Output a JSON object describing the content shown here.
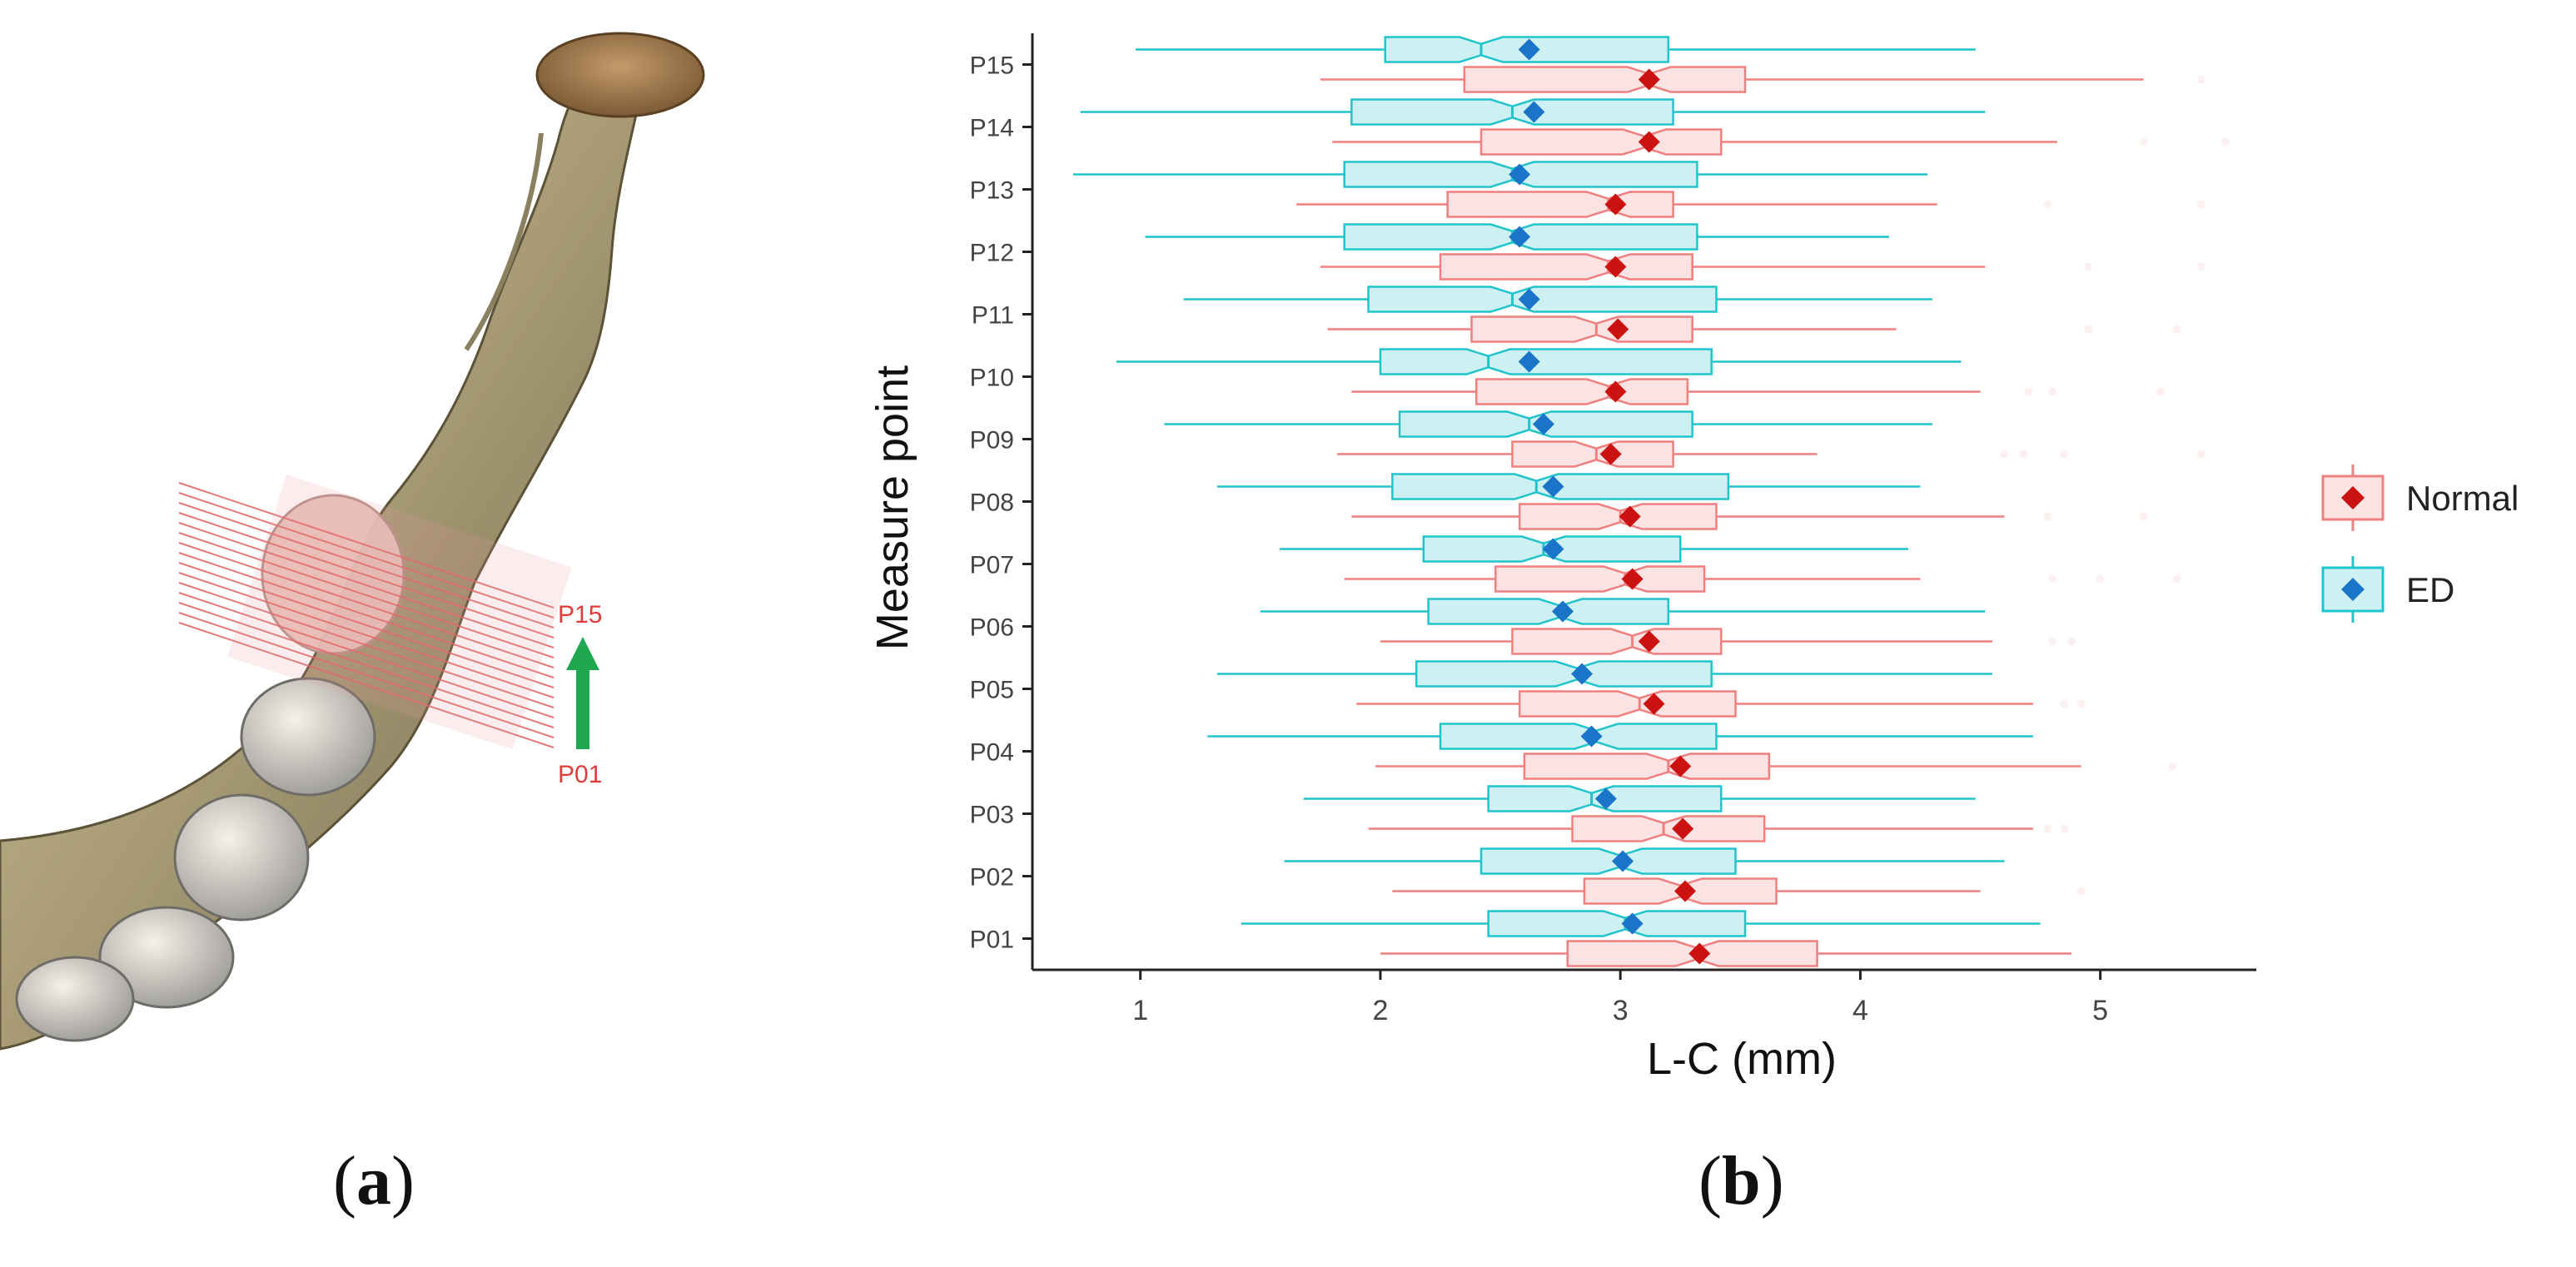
{
  "panel_a": {
    "label_top": "P15",
    "label_bottom": "P01",
    "colors": {
      "lines": "#e06060",
      "arrow": "#1fa84f",
      "bone": "#b7ab88"
    }
  },
  "captions": {
    "a_open": "(",
    "a_letter": "a",
    "a_close": ")",
    "b_open": "(",
    "b_letter": "b",
    "b_close": ")"
  },
  "chart_data": {
    "type": "boxplot",
    "orientation": "horizontal",
    "xlabel": "L-C (mm)",
    "ylabel": "Measure point",
    "xlim": [
      0.55,
      5.65
    ],
    "xticks": [
      1,
      2,
      3,
      4,
      5
    ],
    "categories": [
      "P01",
      "P02",
      "P03",
      "P04",
      "P05",
      "P06",
      "P07",
      "P08",
      "P09",
      "P10",
      "P11",
      "P12",
      "P13",
      "P14",
      "P15"
    ],
    "legend_position": "right",
    "series": [
      {
        "name": "Normal",
        "color": "#f08080",
        "fill": "#fbe3e3",
        "mean_color": "#cc1111",
        "stats": [
          {
            "min": 2.0,
            "q1": 2.78,
            "median": 3.32,
            "q3": 3.82,
            "max": 4.88,
            "mean": 3.33,
            "outliers": []
          },
          {
            "min": 2.05,
            "q1": 2.85,
            "median": 3.25,
            "q3": 3.65,
            "max": 4.5,
            "mean": 3.27,
            "outliers": [
              4.92
            ]
          },
          {
            "min": 1.95,
            "q1": 2.8,
            "median": 3.18,
            "q3": 3.6,
            "max": 4.72,
            "mean": 3.26,
            "outliers": [
              4.78,
              4.85
            ]
          },
          {
            "min": 1.98,
            "q1": 2.6,
            "median": 3.2,
            "q3": 3.62,
            "max": 4.92,
            "mean": 3.25,
            "outliers": [
              5.3
            ]
          },
          {
            "min": 1.9,
            "q1": 2.58,
            "median": 3.08,
            "q3": 3.48,
            "max": 4.72,
            "mean": 3.14,
            "outliers": [
              4.85,
              4.92
            ]
          },
          {
            "min": 2.0,
            "q1": 2.55,
            "median": 3.05,
            "q3": 3.42,
            "max": 4.55,
            "mean": 3.12,
            "outliers": [
              4.8,
              4.88
            ]
          },
          {
            "min": 1.85,
            "q1": 2.48,
            "median": 3.02,
            "q3": 3.35,
            "max": 4.25,
            "mean": 3.05,
            "outliers": [
              4.8,
              5.0,
              5.32
            ]
          },
          {
            "min": 1.88,
            "q1": 2.58,
            "median": 3.0,
            "q3": 3.4,
            "max": 4.6,
            "mean": 3.04,
            "outliers": [
              4.78,
              5.18
            ]
          },
          {
            "min": 1.82,
            "q1": 2.55,
            "median": 2.9,
            "q3": 3.22,
            "max": 3.82,
            "mean": 2.96,
            "outliers": [
              4.6,
              4.68,
              4.85,
              5.42
            ]
          },
          {
            "min": 1.88,
            "q1": 2.4,
            "median": 2.95,
            "q3": 3.28,
            "max": 4.5,
            "mean": 2.98,
            "outliers": [
              4.7,
              4.8,
              5.25
            ]
          },
          {
            "min": 1.78,
            "q1": 2.38,
            "median": 2.9,
            "q3": 3.3,
            "max": 4.15,
            "mean": 2.99,
            "outliers": [
              4.95,
              5.32
            ]
          },
          {
            "min": 1.75,
            "q1": 2.25,
            "median": 2.95,
            "q3": 3.3,
            "max": 4.52,
            "mean": 2.98,
            "outliers": [
              4.95,
              5.42
            ]
          },
          {
            "min": 1.65,
            "q1": 2.28,
            "median": 2.95,
            "q3": 3.22,
            "max": 4.32,
            "mean": 2.98,
            "outliers": [
              4.78,
              5.42
            ]
          },
          {
            "min": 1.8,
            "q1": 2.42,
            "median": 3.1,
            "q3": 3.42,
            "max": 4.82,
            "mean": 3.12,
            "outliers": [
              5.18,
              5.52
            ]
          },
          {
            "min": 1.75,
            "q1": 2.35,
            "median": 3.12,
            "q3": 3.52,
            "max": 5.18,
            "mean": 3.12,
            "outliers": [
              5.42
            ]
          }
        ]
      },
      {
        "name": "ED",
        "color": "#22c4cc",
        "fill": "#cdf0f3",
        "mean_color": "#1a74c8",
        "stats": [
          {
            "min": 1.42,
            "q1": 2.45,
            "median": 3.02,
            "q3": 3.52,
            "max": 4.75,
            "mean": 3.05,
            "outliers": []
          },
          {
            "min": 1.6,
            "q1": 2.42,
            "median": 3.0,
            "q3": 3.48,
            "max": 4.6,
            "mean": 3.01,
            "outliers": []
          },
          {
            "min": 1.68,
            "q1": 2.45,
            "median": 2.88,
            "q3": 3.42,
            "max": 4.48,
            "mean": 2.94,
            "outliers": []
          },
          {
            "min": 1.28,
            "q1": 2.25,
            "median": 2.9,
            "q3": 3.4,
            "max": 4.72,
            "mean": 2.88,
            "outliers": []
          },
          {
            "min": 1.32,
            "q1": 2.15,
            "median": 2.82,
            "q3": 3.38,
            "max": 4.55,
            "mean": 2.84,
            "outliers": []
          },
          {
            "min": 1.5,
            "q1": 2.2,
            "median": 2.75,
            "q3": 3.2,
            "max": 4.52,
            "mean": 2.76,
            "outliers": []
          },
          {
            "min": 1.58,
            "q1": 2.18,
            "median": 2.68,
            "q3": 3.25,
            "max": 4.2,
            "mean": 2.72,
            "outliers": []
          },
          {
            "min": 1.32,
            "q1": 2.05,
            "median": 2.65,
            "q3": 3.45,
            "max": 4.25,
            "mean": 2.72,
            "outliers": []
          },
          {
            "min": 1.1,
            "q1": 2.08,
            "median": 2.62,
            "q3": 3.3,
            "max": 4.3,
            "mean": 2.68,
            "outliers": []
          },
          {
            "min": 0.9,
            "q1": 2.0,
            "median": 2.45,
            "q3": 3.38,
            "max": 4.42,
            "mean": 2.62,
            "outliers": []
          },
          {
            "min": 1.18,
            "q1": 1.95,
            "median": 2.55,
            "q3": 3.4,
            "max": 4.3,
            "mean": 2.62,
            "outliers": []
          },
          {
            "min": 1.02,
            "q1": 1.85,
            "median": 2.55,
            "q3": 3.32,
            "max": 4.12,
            "mean": 2.58,
            "outliers": []
          },
          {
            "min": 0.72,
            "q1": 1.85,
            "median": 2.55,
            "q3": 3.32,
            "max": 4.28,
            "mean": 2.58,
            "outliers": []
          },
          {
            "min": 0.75,
            "q1": 1.88,
            "median": 2.55,
            "q3": 3.22,
            "max": 4.52,
            "mean": 2.64,
            "outliers": []
          },
          {
            "min": 0.98,
            "q1": 2.02,
            "median": 2.42,
            "q3": 3.2,
            "max": 4.48,
            "mean": 2.62,
            "outliers": []
          }
        ]
      }
    ]
  }
}
